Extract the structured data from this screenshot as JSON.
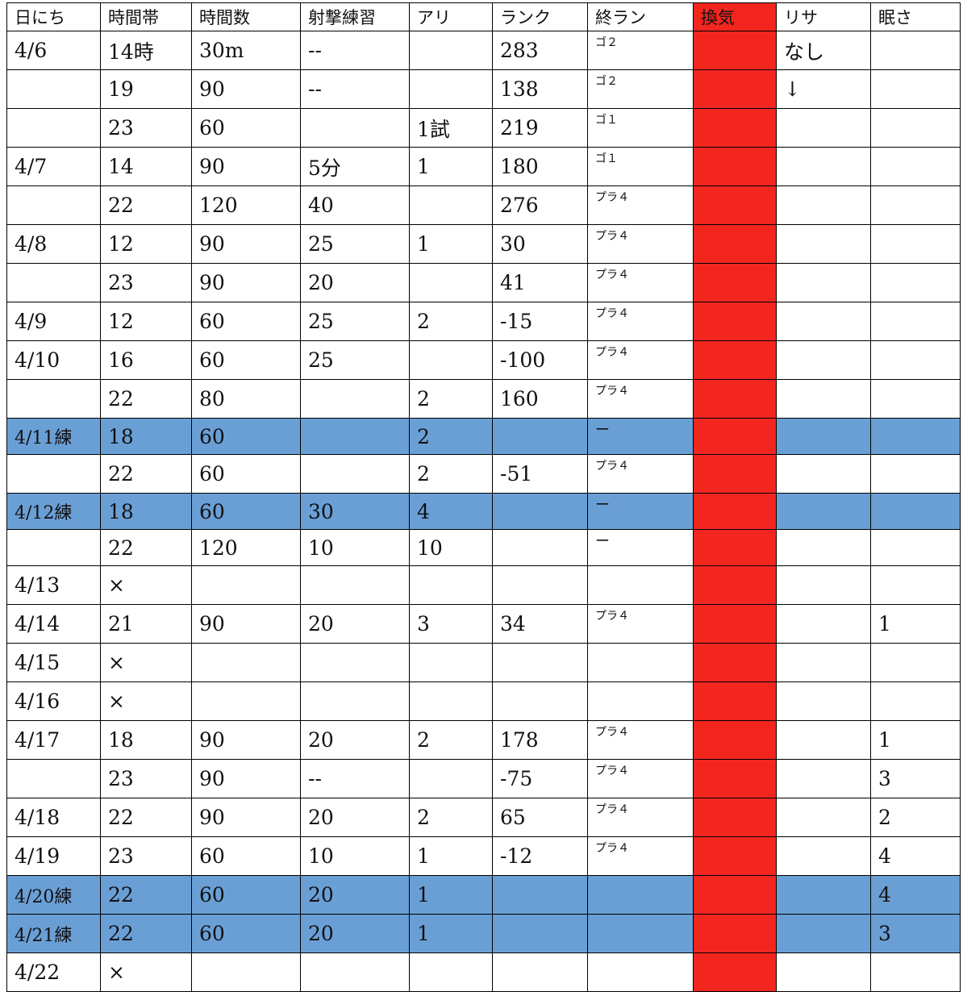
{
  "table": {
    "headers": [
      "日にち",
      "時間帯",
      "時間数",
      "射撃練習",
      "アリ",
      "ランク",
      "終ラン",
      "換気",
      "リサ",
      "眠さ"
    ],
    "colors": {
      "practice_row": "#6a9fd6",
      "ventilation_column": "#f2261e"
    },
    "rows": [
      {
        "practice": false,
        "cells": [
          "4/6",
          "14時",
          "30m",
          "--",
          "",
          "283",
          "ゴ２",
          "",
          "なし",
          ""
        ]
      },
      {
        "practice": false,
        "cells": [
          "",
          "19",
          "90",
          "--",
          "",
          "138",
          "ゴ２",
          "",
          "↓",
          ""
        ]
      },
      {
        "practice": false,
        "cells": [
          "",
          "23",
          "60",
          "",
          "1試",
          "219",
          "ゴ１",
          "",
          "",
          ""
        ]
      },
      {
        "practice": false,
        "cells": [
          "4/7",
          "14",
          "90",
          "5分",
          "1",
          "180",
          "ゴ１",
          "",
          "",
          ""
        ]
      },
      {
        "practice": false,
        "cells": [
          "",
          "22",
          "120",
          "40",
          "",
          "276",
          "プラ４",
          "",
          "",
          ""
        ]
      },
      {
        "practice": false,
        "cells": [
          "4/8",
          "12",
          "90",
          "25",
          "1",
          "30",
          "プラ４",
          "",
          "",
          ""
        ]
      },
      {
        "practice": false,
        "cells": [
          "",
          "23",
          "90",
          "20",
          "",
          "41",
          "プラ４",
          "",
          "",
          ""
        ]
      },
      {
        "practice": false,
        "cells": [
          "4/9",
          "12",
          "60",
          "25",
          "2",
          "-15",
          "プラ４",
          "",
          "",
          ""
        ]
      },
      {
        "practice": false,
        "cells": [
          "4/10",
          "16",
          "60",
          "25",
          "",
          "-100",
          "プラ４",
          "",
          "",
          ""
        ]
      },
      {
        "practice": false,
        "cells": [
          "",
          "22",
          "80",
          "",
          "2",
          "160",
          "プラ４",
          "",
          "",
          ""
        ]
      },
      {
        "practice": true,
        "cells": [
          "4/11練",
          "18",
          "60",
          "",
          "2",
          "",
          "ー",
          "",
          "",
          ""
        ]
      },
      {
        "practice": false,
        "cells": [
          "",
          "22",
          "60",
          "",
          "2",
          "-51",
          "プラ４",
          "",
          "",
          ""
        ]
      },
      {
        "practice": true,
        "cells": [
          "4/12練",
          "18",
          "60",
          "30",
          "4",
          "",
          "ー",
          "",
          "",
          ""
        ]
      },
      {
        "practice": false,
        "cells": [
          "",
          "22",
          "120",
          "10",
          "10",
          "",
          "ー",
          "",
          "",
          ""
        ]
      },
      {
        "practice": false,
        "cells": [
          "4/13",
          "×",
          "",
          "",
          "",
          "",
          "",
          "",
          "",
          ""
        ]
      },
      {
        "practice": false,
        "cells": [
          "4/14",
          "21",
          "90",
          "20",
          "3",
          "34",
          "プラ４",
          "",
          "",
          "1"
        ]
      },
      {
        "practice": false,
        "cells": [
          "4/15",
          "×",
          "",
          "",
          "",
          "",
          "",
          "",
          "",
          ""
        ]
      },
      {
        "practice": false,
        "cells": [
          "4/16",
          "×",
          "",
          "",
          "",
          "",
          "",
          "",
          "",
          ""
        ]
      },
      {
        "practice": false,
        "cells": [
          "4/17",
          "18",
          "90",
          "20",
          "2",
          "178",
          "プラ４",
          "",
          "",
          "1"
        ]
      },
      {
        "practice": false,
        "cells": [
          "",
          "23",
          "90",
          "--",
          "",
          "-75",
          "プラ４",
          "",
          "",
          "3"
        ]
      },
      {
        "practice": false,
        "cells": [
          "4/18",
          "22",
          "90",
          "20",
          "2",
          "65",
          "プラ４",
          "",
          "",
          "2"
        ]
      },
      {
        "practice": false,
        "cells": [
          "4/19",
          "23",
          "60",
          "10",
          "1",
          "-12",
          "プラ４",
          "",
          "",
          "4"
        ]
      },
      {
        "practice": true,
        "cells": [
          "4/20練",
          "22",
          "60",
          "20",
          "1",
          "",
          "",
          "",
          "",
          "4"
        ]
      },
      {
        "practice": true,
        "cells": [
          "4/21練",
          "22",
          "60",
          "20",
          "1",
          "",
          "",
          "",
          "",
          "3"
        ]
      },
      {
        "practice": false,
        "cells": [
          "4/22",
          "×",
          "",
          "",
          "",
          "",
          "",
          "",
          "",
          ""
        ]
      }
    ]
  }
}
